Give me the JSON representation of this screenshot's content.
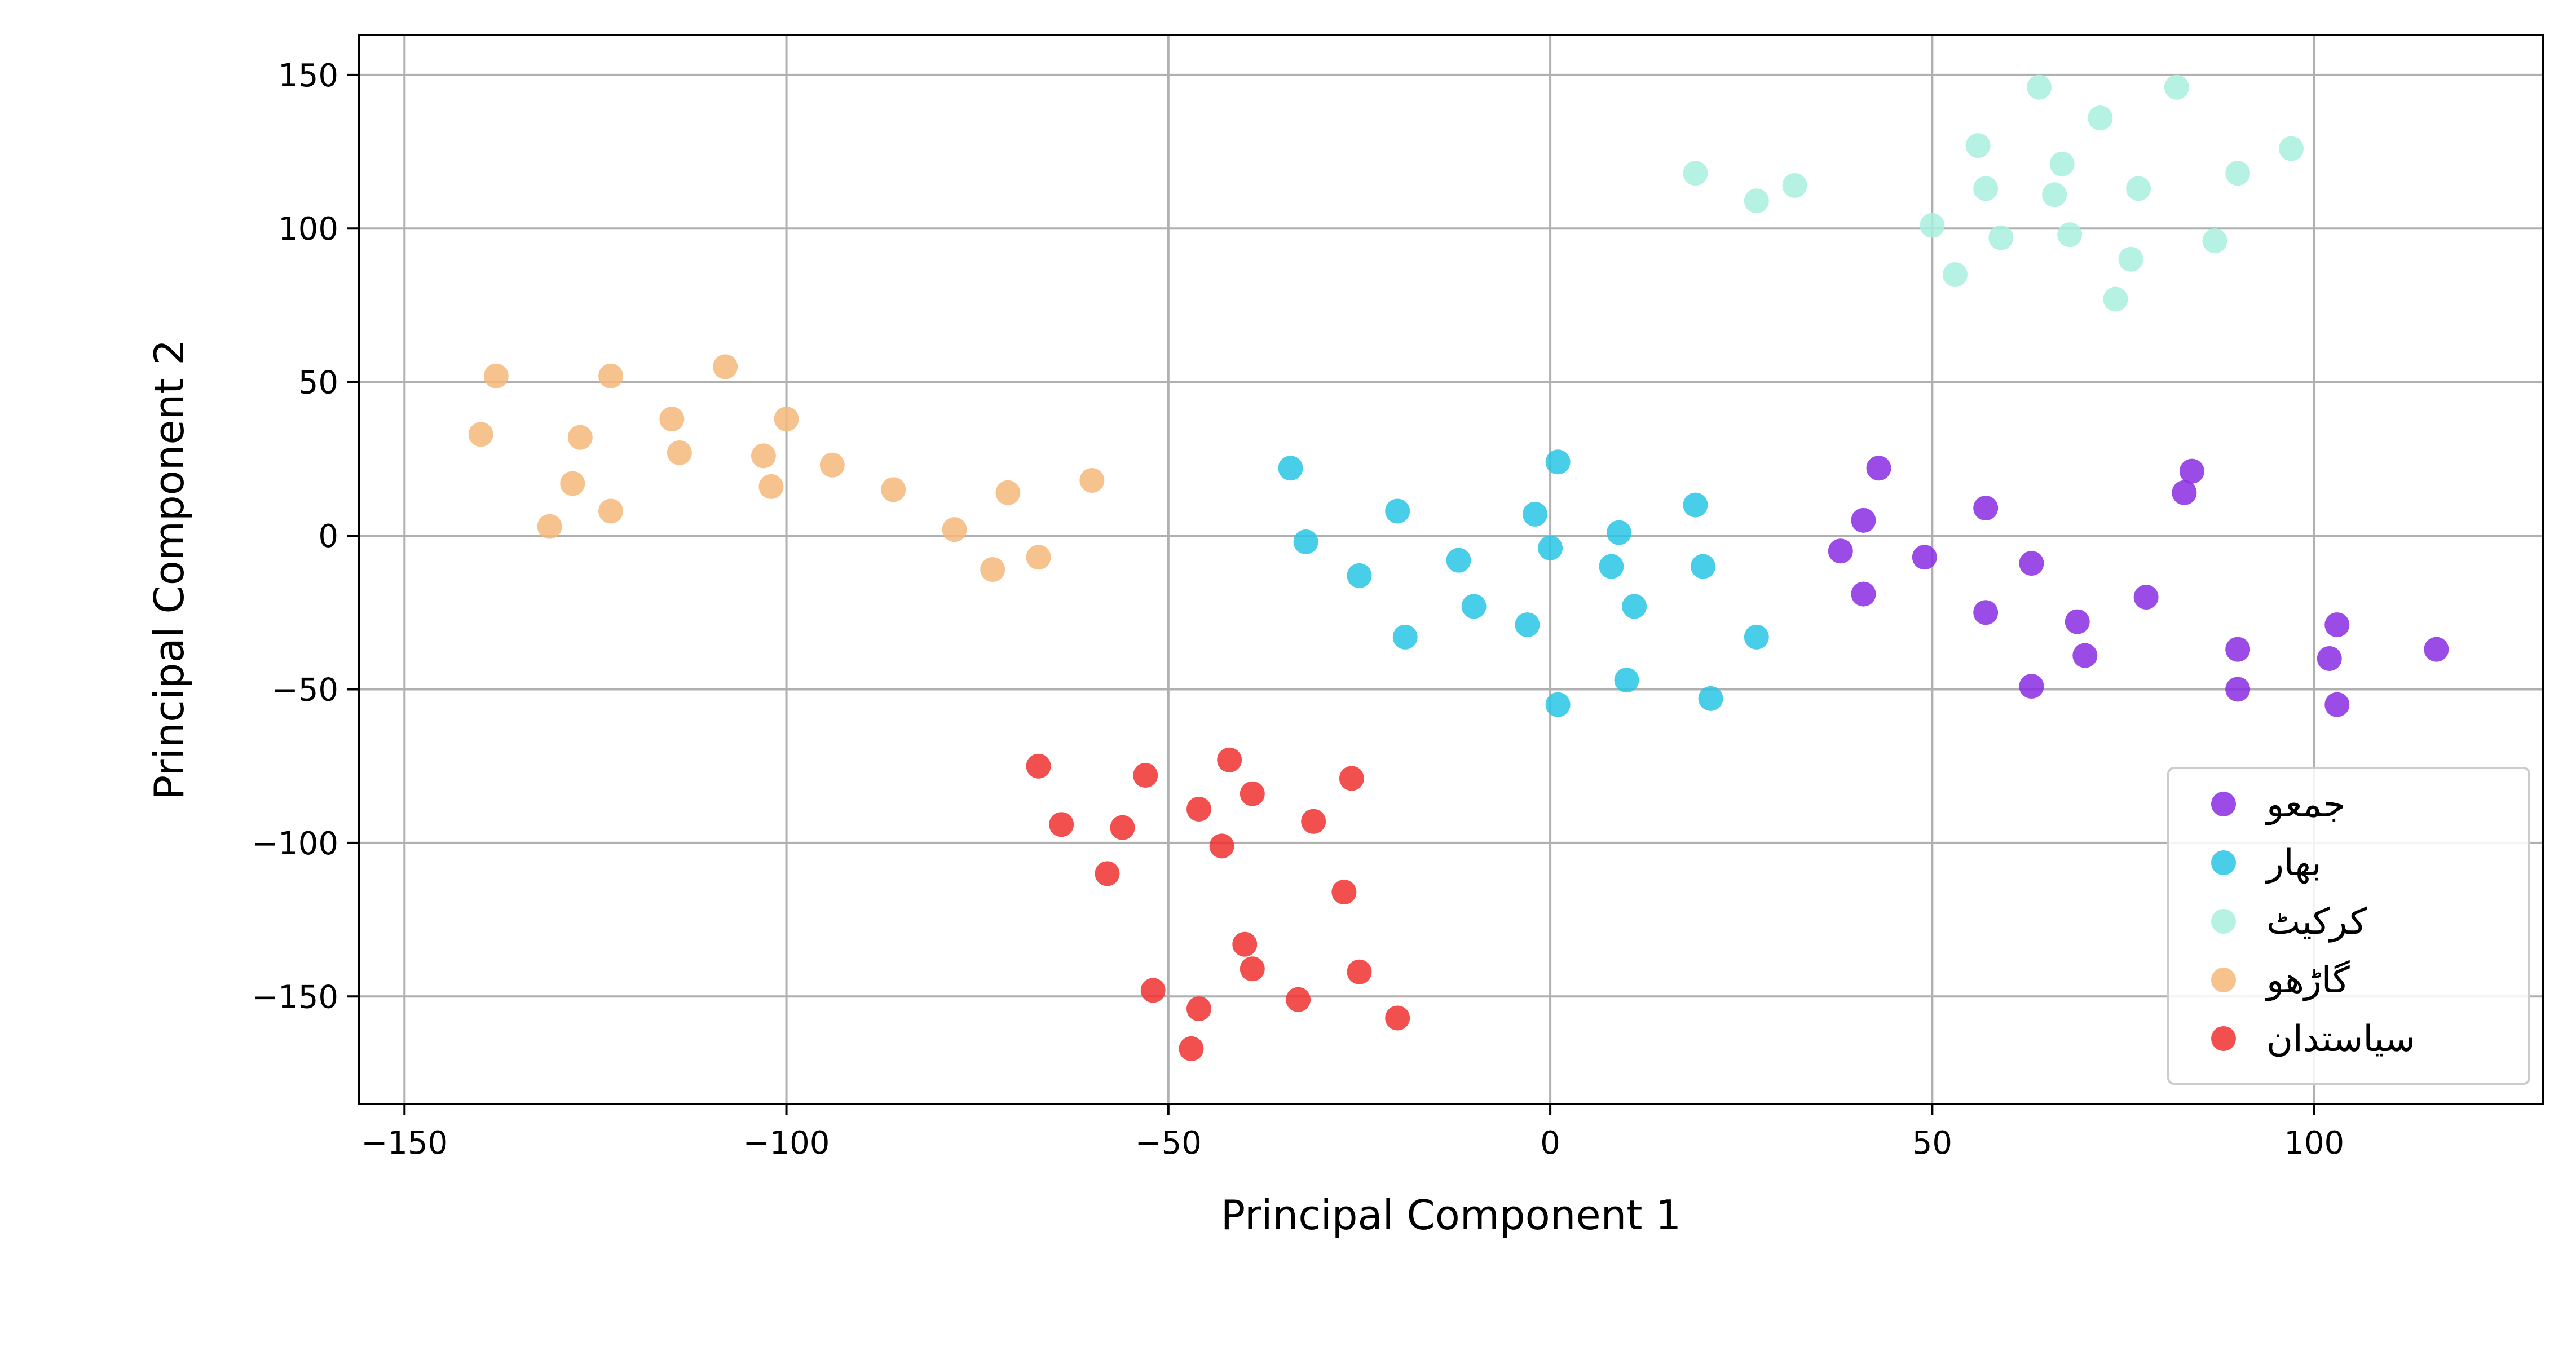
{
  "chart_data": {
    "type": "scatter",
    "xlabel": "Principal Component 1",
    "ylabel": "Principal Component 2",
    "xlim": [
      -156,
      130
    ],
    "ylim": [
      -185,
      163
    ],
    "xticks": [
      -150,
      -100,
      -50,
      0,
      50,
      100
    ],
    "xtick_labels": [
      "−150",
      "−100",
      "−50",
      "0",
      "50",
      "100"
    ],
    "yticks": [
      -150,
      -100,
      -50,
      0,
      50,
      100,
      150
    ],
    "ytick_labels": [
      "−150",
      "−100",
      "−50",
      "0",
      "50",
      "100",
      "150"
    ],
    "grid": true,
    "legend_position": "lower-right",
    "series": [
      {
        "name": "جمعو",
        "color": "#8a2be2",
        "points": [
          [
            43,
            22
          ],
          [
            84,
            21
          ],
          [
            41,
            5
          ],
          [
            57,
            9
          ],
          [
            83,
            14
          ],
          [
            38,
            -5
          ],
          [
            49,
            -7
          ],
          [
            63,
            -9
          ],
          [
            41,
            -19
          ],
          [
            57,
            -25
          ],
          [
            78,
            -20
          ],
          [
            69,
            -28
          ],
          [
            103,
            -29
          ],
          [
            90,
            -37
          ],
          [
            116,
            -37
          ],
          [
            70,
            -39
          ],
          [
            102,
            -40
          ],
          [
            63,
            -49
          ],
          [
            90,
            -50
          ],
          [
            103,
            -55
          ]
        ]
      },
      {
        "name": "بهار",
        "color": "#29c5e6",
        "points": [
          [
            1,
            24
          ],
          [
            -34,
            22
          ],
          [
            -20,
            8
          ],
          [
            -2,
            7
          ],
          [
            19,
            10
          ],
          [
            -32,
            -2
          ],
          [
            9,
            1
          ],
          [
            0,
            -4
          ],
          [
            -12,
            -8
          ],
          [
            8,
            -10
          ],
          [
            20,
            -10
          ],
          [
            -25,
            -13
          ],
          [
            -10,
            -23
          ],
          [
            11,
            -23
          ],
          [
            -3,
            -29
          ],
          [
            -19,
            -33
          ],
          [
            27,
            -33
          ],
          [
            10,
            -47
          ],
          [
            21,
            -53
          ],
          [
            1,
            -55
          ]
        ]
      },
      {
        "name": "کرکیٹ",
        "color": "#a8f0de",
        "points": [
          [
            64,
            146
          ],
          [
            82,
            146
          ],
          [
            72,
            136
          ],
          [
            56,
            127
          ],
          [
            67,
            121
          ],
          [
            97,
            126
          ],
          [
            19,
            118
          ],
          [
            32,
            114
          ],
          [
            90,
            118
          ],
          [
            57,
            113
          ],
          [
            77,
            113
          ],
          [
            27,
            109
          ],
          [
            66,
            111
          ],
          [
            50,
            101
          ],
          [
            59,
            97
          ],
          [
            68,
            98
          ],
          [
            87,
            96
          ],
          [
            76,
            90
          ],
          [
            53,
            85
          ],
          [
            74,
            77
          ]
        ]
      },
      {
        "name": "گاڑھو",
        "color": "#f5b97a",
        "points": [
          [
            -108,
            55
          ],
          [
            -138,
            52
          ],
          [
            -123,
            52
          ],
          [
            -100,
            38
          ],
          [
            -115,
            38
          ],
          [
            -140,
            33
          ],
          [
            -127,
            32
          ],
          [
            -114,
            27
          ],
          [
            -103,
            26
          ],
          [
            -94,
            23
          ],
          [
            -128,
            17
          ],
          [
            -102,
            16
          ],
          [
            -86,
            15
          ],
          [
            -60,
            18
          ],
          [
            -71,
            14
          ],
          [
            -123,
            8
          ],
          [
            -131,
            3
          ],
          [
            -78,
            2
          ],
          [
            -67,
            -7
          ],
          [
            -73,
            -11
          ]
        ]
      },
      {
        "name": "سیاستدان",
        "color": "#f03030",
        "points": [
          [
            -67,
            -75
          ],
          [
            -42,
            -73
          ],
          [
            -53,
            -78
          ],
          [
            -26,
            -79
          ],
          [
            -39,
            -84
          ],
          [
            -46,
            -89
          ],
          [
            -64,
            -94
          ],
          [
            -31,
            -93
          ],
          [
            -56,
            -95
          ],
          [
            -43,
            -101
          ],
          [
            -58,
            -110
          ],
          [
            -27,
            -116
          ],
          [
            -40,
            -133
          ],
          [
            -39,
            -141
          ],
          [
            -25,
            -142
          ],
          [
            -52,
            -148
          ],
          [
            -33,
            -151
          ],
          [
            -46,
            -154
          ],
          [
            -20,
            -157
          ],
          [
            -47,
            -167
          ]
        ]
      }
    ]
  }
}
